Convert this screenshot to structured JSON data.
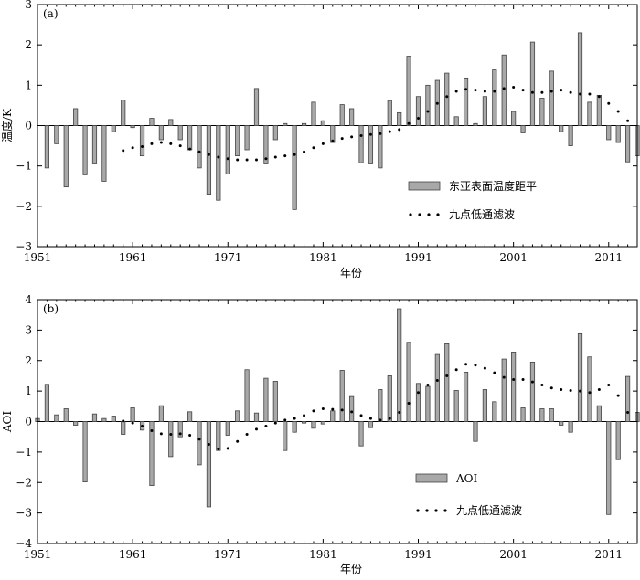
{
  "chart_data": [
    {
      "type": "bar",
      "panel_label": "(a)",
      "xlabel": "年份",
      "ylabel": "温度/K",
      "xlim": [
        1951,
        2014
      ],
      "ylim": [
        -3,
        3
      ],
      "xticks": [
        1951,
        1961,
        1971,
        1981,
        1991,
        2001,
        2011
      ],
      "yticks": [
        -3,
        -2,
        -1,
        0,
        1,
        2,
        3
      ],
      "legend_position": "bottom-right",
      "series": [
        {
          "name": "东亚表面温度距平",
          "type": "bar",
          "x": [
            1952,
            1953,
            1954,
            1955,
            1956,
            1957,
            1958,
            1959,
            1960,
            1961,
            1962,
            1963,
            1964,
            1965,
            1966,
            1967,
            1968,
            1969,
            1970,
            1971,
            1972,
            1973,
            1974,
            1975,
            1976,
            1977,
            1978,
            1979,
            1980,
            1981,
            1982,
            1983,
            1984,
            1985,
            1986,
            1987,
            1988,
            1989,
            1990,
            1991,
            1992,
            1993,
            1994,
            1995,
            1996,
            1997,
            1998,
            1999,
            2000,
            2001,
            2002,
            2003,
            2004,
            2005,
            2006,
            2007,
            2008,
            2009,
            2010,
            2011,
            2012,
            2013,
            2014
          ],
          "values": [
            -1.05,
            -0.45,
            -1.52,
            0.42,
            -1.22,
            -0.95,
            -1.38,
            -0.15,
            0.63,
            -0.05,
            -0.75,
            0.18,
            -0.35,
            0.15,
            -0.35,
            -0.6,
            -1.05,
            -1.7,
            -1.85,
            -1.2,
            -0.75,
            -0.6,
            0.92,
            -0.95,
            -0.35,
            0.05,
            -2.08,
            0.05,
            0.58,
            0.12,
            -0.42,
            0.52,
            0.42,
            -0.92,
            -0.95,
            -1.05,
            0.62,
            0.32,
            1.72,
            0.72,
            1.0,
            1.12,
            1.3,
            0.22,
            1.18,
            0.05,
            0.72,
            1.38,
            1.75,
            0.35,
            -0.18,
            2.07,
            0.68,
            1.35,
            -0.15,
            -0.5,
            2.3,
            0.58,
            0.75,
            -0.35,
            -0.42,
            -0.9,
            -0.75
          ]
        },
        {
          "name": "九点低通滤波",
          "type": "scatter",
          "x": [
            1960,
            1961,
            1962,
            1963,
            1964,
            1965,
            1966,
            1967,
            1968,
            1969,
            1970,
            1971,
            1972,
            1973,
            1974,
            1975,
            1976,
            1977,
            1978,
            1979,
            1980,
            1981,
            1982,
            1983,
            1984,
            1985,
            1986,
            1987,
            1988,
            1989,
            1990,
            1991,
            1992,
            1993,
            1994,
            1995,
            1996,
            1997,
            1998,
            1999,
            2000,
            2001,
            2002,
            2003,
            2004,
            2005,
            2006,
            2007,
            2008,
            2009,
            2010,
            2011,
            2012,
            2013
          ],
          "values": [
            -0.62,
            -0.55,
            -0.52,
            -0.45,
            -0.42,
            -0.45,
            -0.5,
            -0.58,
            -0.65,
            -0.72,
            -0.78,
            -0.82,
            -0.85,
            -0.85,
            -0.85,
            -0.82,
            -0.78,
            -0.75,
            -0.72,
            -0.65,
            -0.55,
            -0.45,
            -0.38,
            -0.32,
            -0.28,
            -0.25,
            -0.22,
            -0.2,
            -0.15,
            -0.1,
            0.05,
            0.18,
            0.35,
            0.55,
            0.72,
            0.85,
            0.9,
            0.88,
            0.85,
            0.85,
            0.92,
            0.95,
            0.88,
            0.82,
            0.82,
            0.85,
            0.88,
            0.82,
            0.78,
            0.78,
            0.72,
            0.55,
            0.35,
            0.12
          ]
        }
      ]
    },
    {
      "type": "bar",
      "panel_label": "(b)",
      "xlabel": "年份",
      "ylabel": "AOI",
      "xlim": [
        1951,
        2014
      ],
      "ylim": [
        -4,
        4
      ],
      "xticks": [
        1951,
        1961,
        1971,
        1981,
        1991,
        2001,
        2011
      ],
      "yticks": [
        -4,
        -3,
        -2,
        -1,
        0,
        1,
        2,
        3,
        4
      ],
      "legend_position": "bottom-center",
      "series": [
        {
          "name": "AOI",
          "type": "bar",
          "x": [
            1951,
            1952,
            1953,
            1954,
            1955,
            1956,
            1957,
            1958,
            1959,
            1960,
            1961,
            1962,
            1963,
            1964,
            1965,
            1966,
            1967,
            1968,
            1969,
            1970,
            1971,
            1972,
            1973,
            1974,
            1975,
            1976,
            1977,
            1978,
            1979,
            1980,
            1981,
            1982,
            1983,
            1984,
            1985,
            1986,
            1987,
            1988,
            1989,
            1990,
            1991,
            1992,
            1993,
            1994,
            1995,
            1996,
            1997,
            1998,
            1999,
            2000,
            2001,
            2002,
            2003,
            2004,
            2005,
            2006,
            2007,
            2008,
            2009,
            2010,
            2011,
            2012,
            2013,
            2014
          ],
          "values": [
            0.1,
            1.22,
            0.22,
            0.42,
            -0.12,
            -1.98,
            0.25,
            0.1,
            0.18,
            -0.42,
            0.45,
            -0.28,
            -2.1,
            0.52,
            -1.15,
            -0.5,
            0.32,
            -1.42,
            -2.8,
            -0.95,
            -0.45,
            0.35,
            1.7,
            0.28,
            1.42,
            1.32,
            -0.95,
            -0.35,
            -0.05,
            -0.22,
            -0.08,
            0.35,
            1.68,
            0.82,
            -0.8,
            -0.2,
            1.05,
            1.5,
            3.7,
            2.6,
            1.25,
            1.15,
            2.2,
            2.55,
            1.02,
            1.62,
            -0.65,
            1.05,
            0.65,
            2.05,
            2.28,
            0.45,
            1.95,
            0.42,
            0.42,
            -0.12,
            -0.35,
            2.88,
            2.12,
            0.52,
            -3.05,
            -1.25,
            1.48,
            0.3
          ]
        },
        {
          "name": "九点低通滤波",
          "type": "scatter",
          "x": [
            1960,
            1961,
            1962,
            1963,
            1964,
            1965,
            1966,
            1967,
            1968,
            1969,
            1970,
            1971,
            1972,
            1973,
            1974,
            1975,
            1976,
            1977,
            1978,
            1979,
            1980,
            1981,
            1982,
            1983,
            1984,
            1985,
            1986,
            1987,
            1988,
            1989,
            1990,
            1991,
            1992,
            1993,
            1994,
            1995,
            1996,
            1997,
            1998,
            1999,
            2000,
            2001,
            2002,
            2003,
            2004,
            2005,
            2006,
            2007,
            2008,
            2009,
            2010,
            2011,
            2012,
            2013
          ],
          "values": [
            0.02,
            -0.05,
            -0.15,
            -0.3,
            -0.4,
            -0.42,
            -0.4,
            -0.45,
            -0.58,
            -0.75,
            -0.9,
            -0.88,
            -0.65,
            -0.42,
            -0.25,
            -0.15,
            -0.05,
            0.05,
            0.1,
            0.2,
            0.35,
            0.42,
            0.4,
            0.38,
            0.32,
            0.2,
            0.1,
            0.05,
            0.1,
            0.3,
            0.6,
            0.95,
            1.2,
            1.35,
            1.5,
            1.7,
            1.88,
            1.85,
            1.75,
            1.6,
            1.45,
            1.38,
            1.38,
            1.3,
            1.2,
            1.1,
            1.05,
            1.02,
            1.0,
            0.95,
            1.05,
            1.2,
            0.85,
            0.3
          ]
        }
      ]
    }
  ]
}
